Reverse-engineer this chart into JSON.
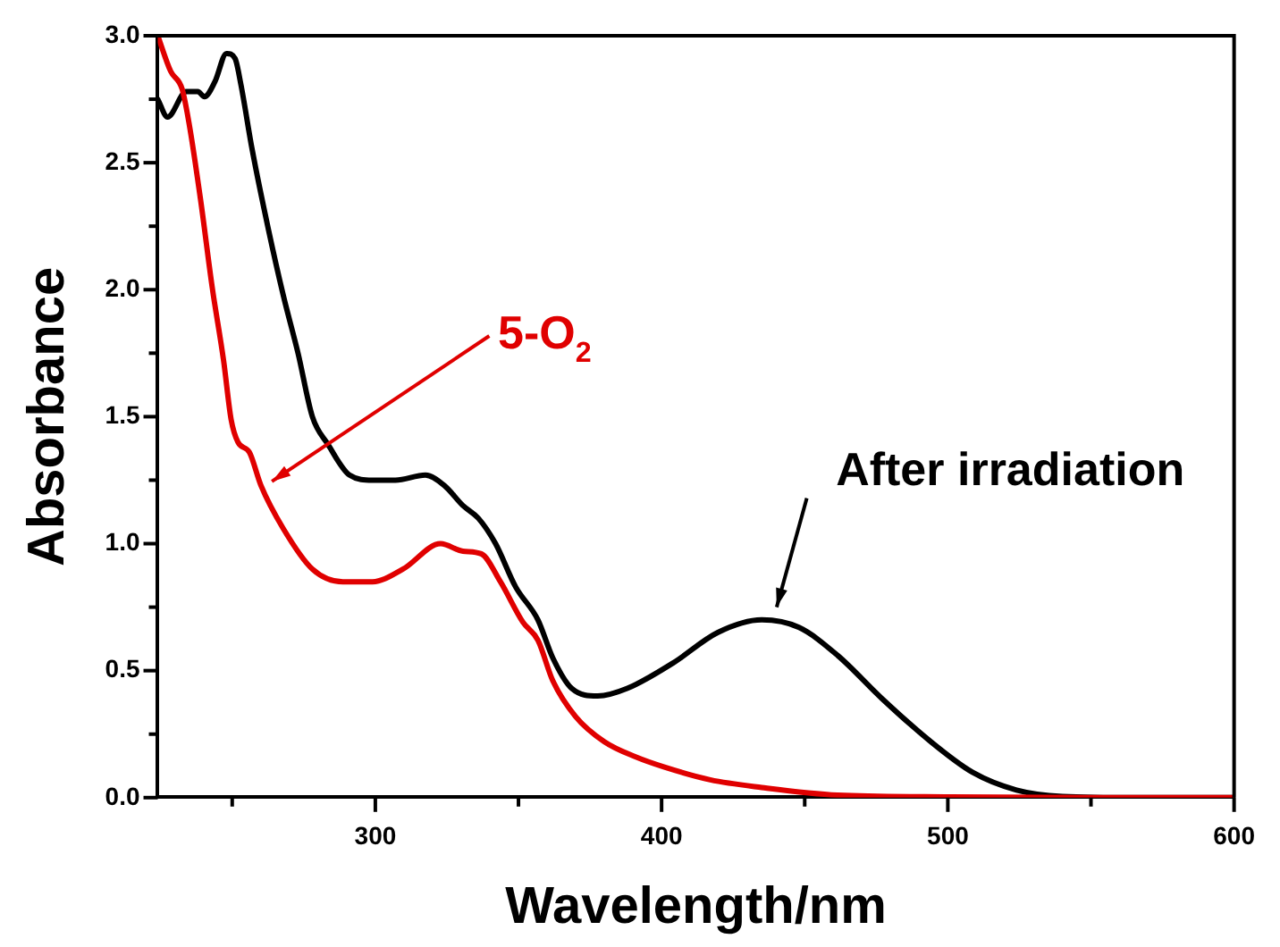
{
  "chart_data": {
    "type": "line",
    "xlabel": "Wavelength/nm",
    "ylabel": "Absorbance",
    "xlim": [
      224,
      600
    ],
    "ylim": [
      0,
      3.0
    ],
    "xticks": [
      {
        "value": 250,
        "label": null
      },
      300,
      {
        "value": 350,
        "label": null
      },
      400,
      {
        "value": 450,
        "label": null
      },
      500,
      {
        "value": 550,
        "label": null
      },
      600
    ],
    "yticks": [
      {
        "value": 0,
        "label": "0.0"
      },
      {
        "value": 0.25,
        "label": null
      },
      {
        "value": 0.5,
        "label": "0.5"
      },
      {
        "value": 0.75,
        "label": null
      },
      {
        "value": 1,
        "label": "1.0"
      },
      {
        "value": 1.25,
        "label": null
      },
      {
        "value": 1.5,
        "label": "1.5"
      },
      {
        "value": 1.75,
        "label": null
      },
      {
        "value": 2,
        "label": "2.0"
      },
      {
        "value": 2.25,
        "label": null
      },
      {
        "value": 2.5,
        "label": "2.5"
      },
      {
        "value": 2.75,
        "label": null
      },
      {
        "value": 3,
        "label": "3.0"
      }
    ],
    "grid": false,
    "legend": false,
    "marker": "none",
    "line_style": "solid",
    "series": [
      {
        "color": "#e00000",
        "x": [
          224,
          228.5,
          232.5,
          235,
          239,
          243,
          247,
          249.6,
          252,
          256,
          260,
          267.8,
          278,
          288.7,
          299,
          309.7,
          322.8,
          330.6,
          337,
          343.7,
          351.6,
          356.8,
          362,
          369.9,
          380,
          391,
          401,
          417,
          435,
          461.5,
          500.8,
          550,
          600
        ],
        "values": [
          3.0,
          2.86,
          2.79,
          2.65,
          2.35,
          2.01,
          1.72,
          1.49,
          1.4,
          1.36,
          1.23,
          1.06,
          0.9,
          0.85,
          0.85,
          0.9,
          1.0,
          0.97,
          0.96,
          0.85,
          0.69,
          0.62,
          0.46,
          0.32,
          0.22,
          0.16,
          0.12,
          0.07,
          0.04,
          0.01,
          0.003,
          0,
          0
        ]
      },
      {
        "color": "#000000",
        "x": [
          224,
          227.4,
          234,
          238,
          240.3,
          244,
          248,
          251,
          253,
          257,
          262.6,
          267.8,
          273,
          278,
          283.5,
          291,
          299,
          307,
          317.5,
          324,
          330.6,
          336,
          342,
          349,
          356.8,
          362,
          368.6,
          377.7,
          388,
          404,
          419.6,
          435,
          448,
          461.5,
          477,
          493,
          508.6,
          524,
          540,
          566,
          600
        ],
        "values": [
          2.75,
          2.68,
          2.78,
          2.78,
          2.76,
          2.82,
          2.93,
          2.91,
          2.81,
          2.55,
          2.24,
          1.98,
          1.75,
          1.5,
          1.39,
          1.27,
          1.25,
          1.25,
          1.27,
          1.23,
          1.15,
          1.1,
          1.0,
          0.83,
          0.7,
          0.55,
          0.43,
          0.4,
          0.43,
          0.53,
          0.65,
          0.7,
          0.67,
          0.56,
          0.39,
          0.23,
          0.1,
          0.03,
          0.005,
          0,
          0
        ]
      }
    ],
    "annotations": [
      "5-O$_{2}$",
      "After irradiation"
    ]
  }
}
